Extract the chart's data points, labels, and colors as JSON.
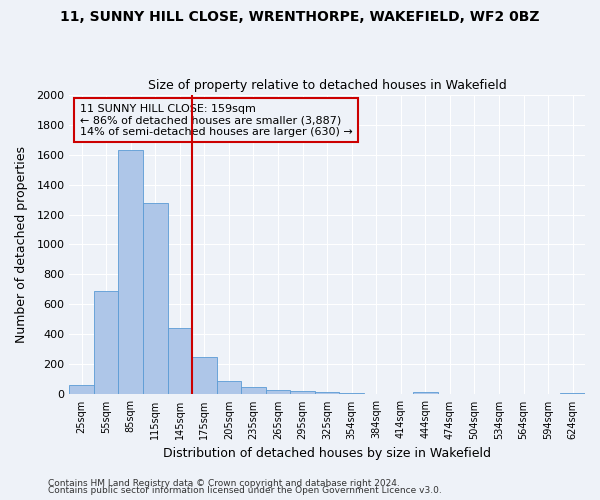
{
  "title": "11, SUNNY HILL CLOSE, WRENTHORPE, WAKEFIELD, WF2 0BZ",
  "subtitle": "Size of property relative to detached houses in Wakefield",
  "xlabel": "Distribution of detached houses by size in Wakefield",
  "ylabel": "Number of detached properties",
  "bar_labels": [
    "25sqm",
    "55sqm",
    "85sqm",
    "115sqm",
    "145sqm",
    "175sqm",
    "205sqm",
    "235sqm",
    "265sqm",
    "295sqm",
    "325sqm",
    "354sqm",
    "384sqm",
    "414sqm",
    "444sqm",
    "474sqm",
    "504sqm",
    "534sqm",
    "564sqm",
    "594sqm",
    "624sqm"
  ],
  "bar_values": [
    65,
    690,
    1630,
    1280,
    440,
    252,
    90,
    52,
    28,
    20,
    15,
    10,
    0,
    0,
    15,
    0,
    0,
    0,
    0,
    0,
    10
  ],
  "bar_color": "#aec6e8",
  "bar_edgecolor": "#5b9bd5",
  "vline_x": 5.0,
  "vline_color": "#cc0000",
  "annotation_line1": "11 SUNNY HILL CLOSE: 159sqm",
  "annotation_line2": "← 86% of detached houses are smaller (3,887)",
  "annotation_line3": "14% of semi-detached houses are larger (630) →",
  "annotation_box_color": "#cc0000",
  "ylim": [
    0,
    2000
  ],
  "yticks": [
    0,
    200,
    400,
    600,
    800,
    1000,
    1200,
    1400,
    1600,
    1800,
    2000
  ],
  "bg_color": "#eef2f8",
  "grid_color": "#ffffff",
  "footer1": "Contains HM Land Registry data © Crown copyright and database right 2024.",
  "footer2": "Contains public sector information licensed under the Open Government Licence v3.0."
}
